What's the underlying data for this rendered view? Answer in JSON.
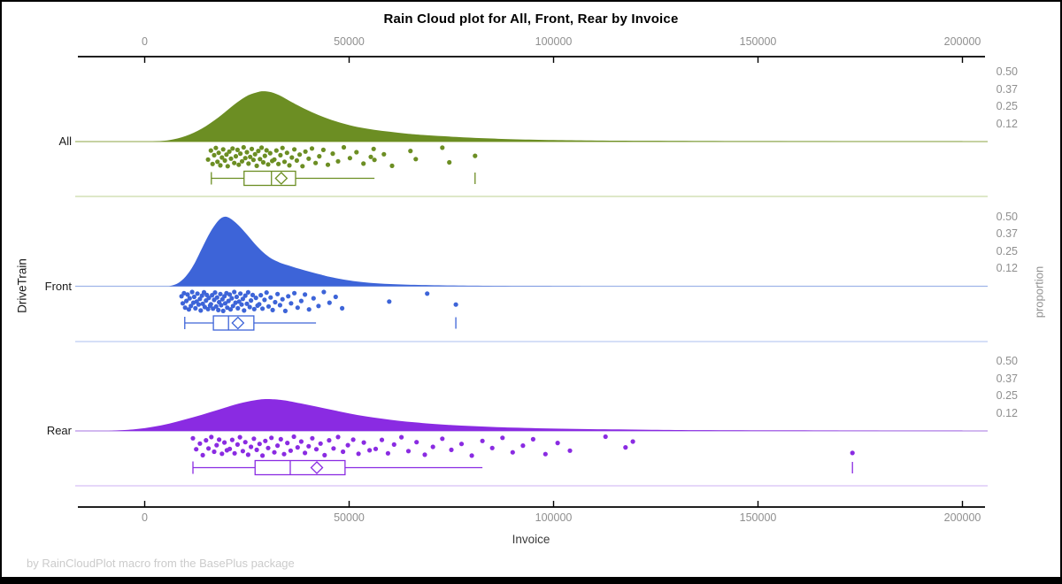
{
  "title": "Rain Cloud plot for All, Front, Rear by Invoice",
  "footer": "by RainCloudPlot macro from the BasePlus package",
  "x_axis": {
    "label": "Invoice",
    "ticks": [
      0,
      50000,
      100000,
      150000,
      200000
    ]
  },
  "y_axis_left": {
    "label": "DriveTrain"
  },
  "y_axis_right": {
    "label": "proportion",
    "tick_labels": [
      "0.50",
      "0.37",
      "0.25",
      "0.12"
    ],
    "tick_positions": [
      0.5,
      0.375,
      0.25,
      0.125
    ]
  },
  "colors": {
    "frame": "#000000",
    "axis_line": "#000000",
    "tick_label": "#8F8F8F",
    "footer_text": "#CBCBCB"
  },
  "chart_data": {
    "type": "raincloud",
    "x_unit": "Invoice ($)",
    "x_range": [
      0,
      200000
    ],
    "proportion_ticks": [
      0.12,
      0.25,
      0.37,
      0.5
    ],
    "categories": [
      "All",
      "Front",
      "Rear"
    ],
    "jitter_pattern": [
      0.62,
      0.18,
      0.84,
      0.41,
      0.05,
      0.73,
      0.29,
      0.91,
      0.52,
      0.12,
      0.67,
      0.38,
      0.95,
      0.23,
      0.58,
      0.08,
      0.79,
      0.46,
      0.15,
      0.88,
      0.33,
      0.71,
      0.02,
      0.55,
      0.26,
      0.82,
      0.49,
      0.1,
      0.64,
      0.36,
      0.93,
      0.2,
      0.6,
      0.04,
      0.76,
      0.44,
      0.17,
      0.86,
      0.31,
      0.69
    ],
    "series": [
      {
        "name": "All",
        "color": "#6C8E23",
        "baseline_color": "#A3B86B",
        "separator_color": "#CBD9A6",
        "jitter_offset": 0,
        "density": {
          "x": [
            2000,
            6000,
            10000,
            14000,
            18000,
            22000,
            25000,
            27500,
            29000,
            31000,
            33500,
            36000,
            40000,
            44000,
            48000,
            52000,
            56000,
            60000,
            64000,
            68000,
            73000,
            78000,
            84000,
            91000,
            100000,
            112000,
            128000,
            150000,
            175000,
            200000
          ],
          "proportion": [
            0,
            0.01,
            0.04,
            0.095,
            0.175,
            0.27,
            0.33,
            0.357,
            0.365,
            0.357,
            0.327,
            0.285,
            0.225,
            0.175,
            0.135,
            0.106,
            0.086,
            0.071,
            0.058,
            0.048,
            0.039,
            0.031,
            0.023,
            0.016,
            0.011,
            0.007,
            0.005,
            0.003,
            0.002,
            0.001
          ]
        },
        "box": {
          "whisker_low": 16300,
          "q1": 24300,
          "median": 31000,
          "mean": 33400,
          "q3": 36900,
          "whisker_high": 56200,
          "far_tick": 80800
        },
        "points": [
          15500,
          16200,
          16600,
          17000,
          17400,
          17800,
          18100,
          18500,
          18900,
          19200,
          19600,
          20000,
          20300,
          20700,
          21100,
          21500,
          21900,
          22300,
          22700,
          23000,
          23400,
          23800,
          24200,
          24600,
          25000,
          25400,
          25800,
          26200,
          26600,
          27000,
          27400,
          27800,
          28200,
          28600,
          29000,
          29400,
          29800,
          30200,
          30700,
          31200,
          31700,
          32200,
          32700,
          33200,
          33700,
          34200,
          34800,
          35400,
          36000,
          36600,
          37200,
          37900,
          38600,
          39300,
          40100,
          40900,
          41800,
          42700,
          43700,
          44800,
          46000,
          47300,
          48700,
          50200,
          51800,
          53500,
          55300,
          56000,
          56200,
          58500,
          60500,
          65000,
          66300,
          72800,
          74500,
          80800
        ]
      },
      {
        "name": "Front",
        "color": "#3D64D8",
        "baseline_color": "#9FB4E8",
        "separator_color": "#BCCCF2",
        "jitter_offset": 13,
        "density": {
          "x": [
            6000,
            8000,
            10000,
            12000,
            14000,
            16000,
            18000,
            19500,
            21000,
            23000,
            25000,
            27000,
            29000,
            31000,
            33000,
            35000,
            37000,
            39000,
            41000,
            43000,
            45000,
            48000,
            51000,
            55000,
            60000,
            66000,
            74000,
            84000,
            96000,
            110000
          ],
          "proportion": [
            0,
            0.02,
            0.07,
            0.155,
            0.275,
            0.39,
            0.475,
            0.503,
            0.49,
            0.44,
            0.375,
            0.305,
            0.245,
            0.2,
            0.172,
            0.152,
            0.133,
            0.116,
            0.1,
            0.085,
            0.07,
            0.052,
            0.038,
            0.025,
            0.016,
            0.01,
            0.006,
            0.003,
            0.001,
            0
          ]
        },
        "box": {
          "whisker_low": 9800,
          "q1": 16800,
          "median": 20500,
          "mean": 22800,
          "q3": 26700,
          "whisker_high": 41900,
          "far_tick": 76100
        },
        "points": [
          9000,
          9300,
          9600,
          9900,
          10200,
          10500,
          10800,
          11000,
          11300,
          11600,
          11900,
          12100,
          12400,
          12700,
          12900,
          13200,
          13500,
          13700,
          14000,
          14200,
          14500,
          14700,
          15000,
          15200,
          15500,
          15700,
          16000,
          16200,
          16500,
          16700,
          17000,
          17200,
          17500,
          17700,
          18000,
          18200,
          18500,
          18700,
          19000,
          19200,
          19500,
          19700,
          20000,
          20200,
          20500,
          20800,
          21000,
          21300,
          21600,
          21900,
          22200,
          22500,
          22800,
          23100,
          23400,
          23700,
          24000,
          24300,
          24600,
          25000,
          25300,
          25700,
          26000,
          26400,
          26800,
          27200,
          27600,
          28000,
          28400,
          28800,
          29300,
          29800,
          30300,
          30800,
          31300,
          31900,
          32500,
          33100,
          33700,
          34400,
          35100,
          35800,
          36600,
          37400,
          38300,
          39200,
          40200,
          41300,
          42500,
          43800,
          45200,
          46700,
          48300,
          59800,
          69100,
          76100
        ]
      },
      {
        "name": "Rear",
        "color": "#8A2BE2",
        "baseline_color": "#B78FE6",
        "separator_color": "#D8BFF5",
        "jitter_offset": 27,
        "density": {
          "x": [
            -9000,
            -4000,
            0,
            4000,
            8000,
            12000,
            16000,
            20000,
            24000,
            28000,
            31000,
            34000,
            38000,
            42000,
            46000,
            50000,
            54000,
            58000,
            62000,
            66000,
            70000,
            75000,
            80000,
            85000,
            90000,
            96000,
            102000,
            109000,
            116000,
            124000,
            133000,
            143000,
            154000,
            166000,
            180000,
            200000
          ],
          "proportion": [
            0,
            0.008,
            0.02,
            0.04,
            0.068,
            0.1,
            0.135,
            0.172,
            0.205,
            0.227,
            0.23,
            0.222,
            0.2,
            0.176,
            0.151,
            0.127,
            0.106,
            0.089,
            0.074,
            0.062,
            0.052,
            0.042,
            0.035,
            0.029,
            0.024,
            0.019,
            0.016,
            0.013,
            0.011,
            0.008,
            0.006,
            0.005,
            0.004,
            0.003,
            0.002,
            0.001
          ]
        },
        "box": {
          "whisker_low": 11800,
          "q1": 27000,
          "median": 35600,
          "mean": 42100,
          "q3": 49000,
          "whisker_high": 82600,
          "far_tick": 173100
        },
        "points": [
          11800,
          12600,
          13500,
          14200,
          15000,
          15600,
          16300,
          17000,
          17600,
          18200,
          18900,
          19500,
          20100,
          20800,
          21400,
          22000,
          22700,
          23300,
          24000,
          24600,
          25300,
          26000,
          26700,
          27400,
          28100,
          28800,
          29500,
          30200,
          31000,
          31700,
          32500,
          33300,
          34100,
          34900,
          35700,
          36500,
          37400,
          38300,
          39200,
          40100,
          41000,
          42000,
          43000,
          44000,
          45100,
          46200,
          47300,
          48500,
          49700,
          51000,
          52300,
          53600,
          55000,
          56500,
          58000,
          59500,
          61000,
          62800,
          64500,
          66500,
          68500,
          70500,
          72800,
          75000,
          77500,
          80000,
          82600,
          85000,
          87500,
          90000,
          92500,
          95000,
          98000,
          101000,
          104000,
          112700,
          117600,
          119400,
          173100
        ]
      }
    ]
  }
}
